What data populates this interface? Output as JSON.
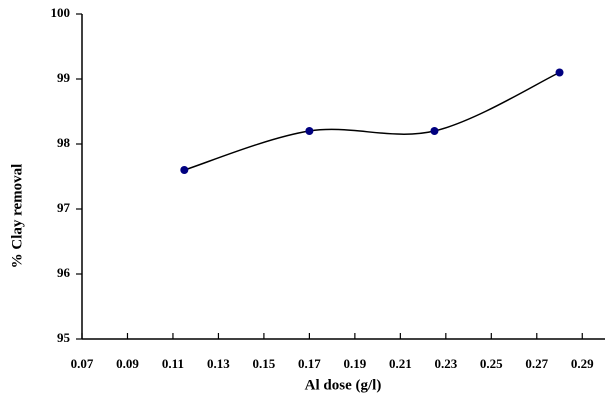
{
  "chart_data": {
    "type": "line",
    "x_label": "Al  dose (g/l)",
    "y_label": "% Clay removal",
    "series": [
      {
        "name": "Clay removal",
        "color": "#000080",
        "x": [
          0.115,
          0.17,
          0.225,
          0.28
        ],
        "values": [
          97.6,
          98.2,
          98.2,
          99.1
        ]
      }
    ],
    "xlim": [
      0.07,
      0.3
    ],
    "xticks": [
      0.07,
      0.09,
      0.11,
      0.13,
      0.15,
      0.17,
      0.19,
      0.21,
      0.23,
      0.25,
      0.27,
      0.29
    ],
    "ylim": [
      95,
      100
    ],
    "yticks": [
      95,
      96,
      97,
      98,
      99,
      100
    ],
    "smooth": true,
    "grid": false
  }
}
